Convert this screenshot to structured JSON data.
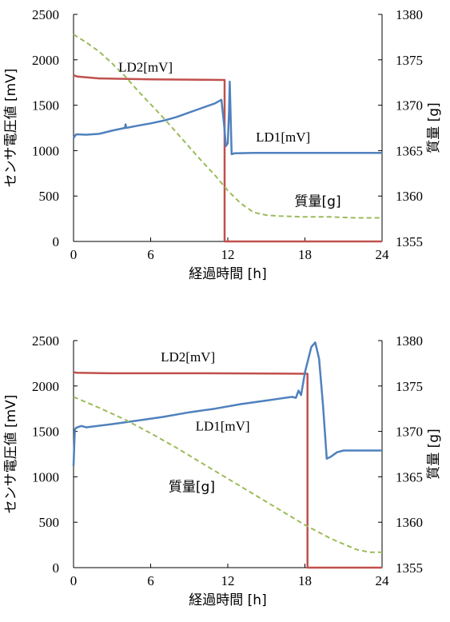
{
  "chart_data": [
    {
      "type": "line",
      "title": "",
      "xlabel": "経過時間 [h]",
      "ylabel_left": "センサ電圧値 [mV]",
      "ylabel_right": "質量 [g]",
      "xlim": [
        0,
        24
      ],
      "ylim_left": [
        0,
        2500
      ],
      "ylim_right": [
        1355,
        1380
      ],
      "x_ticks": [
        "0",
        "6",
        "12",
        "18",
        "24"
      ],
      "y_left_ticks": [
        "0",
        "500",
        "1000",
        "1500",
        "2000",
        "2500"
      ],
      "y_right_ticks": [
        "1355",
        "1360",
        "1365",
        "1370",
        "1375",
        "1380"
      ],
      "grid": false,
      "series": [
        {
          "name": "LD2[mV]",
          "axis": "left",
          "color": "#c0504d",
          "style": "solid",
          "x": [
            0,
            0.3,
            2,
            6,
            10,
            11.6,
            11.75,
            11.75,
            24
          ],
          "y": [
            1830,
            1815,
            1795,
            1785,
            1780,
            1778,
            1778,
            0,
            0
          ]
        },
        {
          "name": "LD1[mV]",
          "axis": "left",
          "color": "#4f81bd",
          "style": "solid",
          "x": [
            0,
            0.2,
            1,
            2,
            3,
            4,
            4.05,
            4.1,
            5,
            6,
            7,
            8,
            9,
            10,
            11,
            11.5,
            11.7,
            11.85,
            12.0,
            12.1,
            12.15,
            12.2,
            12.3,
            12.5,
            14,
            18,
            24
          ],
          "y": [
            1140,
            1180,
            1175,
            1185,
            1220,
            1250,
            1290,
            1250,
            1275,
            1300,
            1330,
            1370,
            1420,
            1470,
            1520,
            1560,
            1300,
            1050,
            1080,
            1450,
            1760,
            1500,
            960,
            970,
            975,
            975,
            975
          ]
        },
        {
          "name": "質量[g]",
          "axis": "right",
          "color": "#9bbb59",
          "style": "dashed",
          "x": [
            0,
            1,
            2,
            3,
            4,
            5,
            6,
            7,
            8,
            9,
            10,
            11,
            12,
            13,
            14,
            15,
            16,
            18,
            20,
            22,
            24
          ],
          "y": [
            1377.8,
            1376.9,
            1375.9,
            1374.6,
            1373.2,
            1371.6,
            1370.1,
            1368.6,
            1367.0,
            1365.4,
            1363.8,
            1362.3,
            1360.6,
            1359.2,
            1358.2,
            1357.9,
            1357.8,
            1357.7,
            1357.7,
            1357.6,
            1357.6
          ]
        }
      ]
    },
    {
      "type": "line",
      "title": "",
      "xlabel": "経過時間 [h]",
      "ylabel_left": "センサ電圧値 [mV]",
      "ylabel_right": "質量 [g]",
      "xlim": [
        0,
        24
      ],
      "ylim_left": [
        0,
        2500
      ],
      "ylim_right": [
        1355,
        1380
      ],
      "x_ticks": [
        "0",
        "6",
        "12",
        "18",
        "24"
      ],
      "y_left_ticks": [
        "0",
        "500",
        "1000",
        "1500",
        "2000",
        "2500"
      ],
      "y_right_ticks": [
        "1355",
        "1360",
        "1365",
        "1370",
        "1375",
        "1380"
      ],
      "grid": false,
      "series": [
        {
          "name": "LD2[mV]",
          "axis": "left",
          "color": "#c0504d",
          "style": "solid",
          "x": [
            0,
            0.3,
            3,
            6,
            10,
            14,
            17,
            18.1,
            18.2,
            18.2,
            24
          ],
          "y": [
            2150,
            2145,
            2140,
            2140,
            2140,
            2138,
            2136,
            2135,
            2135,
            0,
            0
          ]
        },
        {
          "name": "LD1[mV]",
          "axis": "left",
          "color": "#4f81bd",
          "style": "solid",
          "x": [
            0,
            0.1,
            0.2,
            0.6,
            1,
            3,
            5,
            7,
            9,
            11,
            13,
            15,
            16,
            17,
            17.3,
            17.5,
            17.7,
            18.0,
            18.5,
            18.8,
            19.1,
            19.4,
            19.7,
            20,
            20.5,
            21,
            22,
            24
          ],
          "y": [
            1120,
            1520,
            1540,
            1560,
            1545,
            1580,
            1620,
            1660,
            1710,
            1750,
            1800,
            1840,
            1860,
            1880,
            1870,
            1950,
            1900,
            2150,
            2430,
            2480,
            2300,
            1800,
            1200,
            1220,
            1270,
            1290,
            1290,
            1290
          ]
        },
        {
          "name": "質量[g]",
          "axis": "right",
          "color": "#9bbb59",
          "style": "dashed",
          "x": [
            0,
            2,
            4,
            6,
            8,
            10,
            12,
            14,
            16,
            18,
            20,
            22,
            23,
            24
          ],
          "y": [
            1373.8,
            1372.6,
            1371.3,
            1369.8,
            1368.2,
            1366.5,
            1364.8,
            1363.1,
            1361.4,
            1359.7,
            1358.2,
            1357.0,
            1356.7,
            1356.7
          ]
        }
      ]
    }
  ],
  "annotations": [
    [
      {
        "text": "LD2[mV]",
        "x": 5.6,
        "y_left": 1870,
        "kind": "latin"
      },
      {
        "text": "LD1[mV]",
        "x": 16.3,
        "y_left": 1100,
        "kind": "latin"
      },
      {
        "text": "質量[g]",
        "x": 19.0,
        "y_left": 390,
        "kind": "ja"
      }
    ],
    [
      {
        "text": "LD2[mV]",
        "x": 8.9,
        "y_left": 2270,
        "kind": "latin"
      },
      {
        "text": "LD1[mV]",
        "x": 11.6,
        "y_left": 1510,
        "kind": "latin"
      },
      {
        "text": "質量[g]",
        "x": 9.2,
        "y_left": 840,
        "kind": "ja"
      }
    ]
  ]
}
